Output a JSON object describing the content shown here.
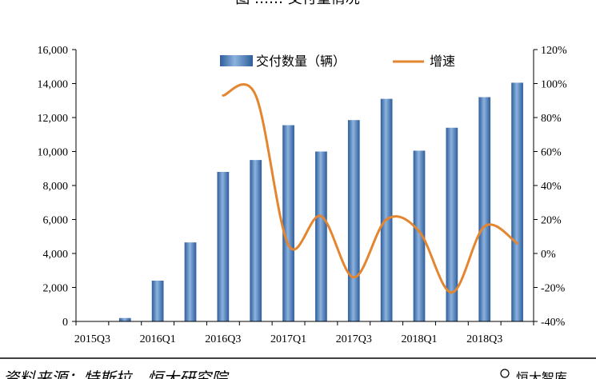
{
  "chart_data": {
    "type": "bar+line",
    "title": "",
    "categories": [
      "2015Q3",
      "2015Q4",
      "2016Q1",
      "2016Q2",
      "2016Q3",
      "2016Q4",
      "2017Q1",
      "2017Q2",
      "2017Q3",
      "2017Q4",
      "2018Q1",
      "2018Q2",
      "2018Q3",
      "2018Q4"
    ],
    "x_tick_labels": [
      "2015Q3",
      "2016Q1",
      "2016Q3",
      "2017Q1",
      "2017Q3",
      "2018Q1",
      "2018Q3"
    ],
    "series": [
      {
        "name": "交付数量（辆）",
        "type": "bar",
        "axis": "left",
        "values": [
          null,
          200,
          2400,
          4650,
          8800,
          9500,
          11550,
          10000,
          11850,
          13100,
          10050,
          11400,
          13200,
          14050
        ]
      },
      {
        "name": "增速",
        "type": "line",
        "axis": "right",
        "unit": "%",
        "values": [
          null,
          null,
          null,
          null,
          93,
          93,
          5,
          22,
          -14,
          20,
          13,
          -23,
          16,
          6
        ]
      }
    ],
    "y_left": {
      "range": [
        0,
        16000
      ],
      "ticks": [
        "0",
        "2,000",
        "4,000",
        "6,000",
        "8,000",
        "10,000",
        "12,000",
        "14,000",
        "16,000"
      ]
    },
    "y_right": {
      "range": [
        -40,
        120
      ],
      "ticks": [
        "-40%",
        "-20%",
        "0%",
        "20%",
        "40%",
        "60%",
        "80%",
        "100%",
        "120%"
      ]
    },
    "legend": {
      "position": "top-center"
    },
    "grid": false,
    "colors": {
      "bar": "#3d6fae",
      "bar_light": "#8db3de",
      "line": "#e4852f"
    }
  },
  "top_partial_text": "图 …… 交付量情况",
  "bottom_partial_text": "资料来源：特斯拉，恒大研究院",
  "watermark_text": "恒大智库"
}
